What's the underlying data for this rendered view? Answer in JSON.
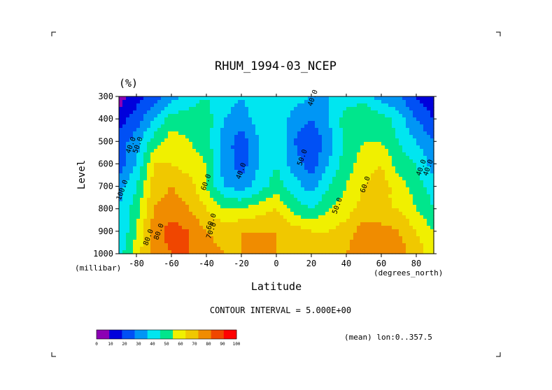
{
  "chart_data": {
    "type": "heatmap",
    "title": "RHUM_1994-03_NCEP",
    "units": "(%)",
    "xlabel": "Latitude",
    "ylabel": "Level",
    "x_unit_label": "(degrees_north)",
    "y_unit_label": "(millibar)",
    "xlim": [
      -90,
      90
    ],
    "ylim": [
      1000,
      300
    ],
    "x_ticks": [
      -80,
      -60,
      -40,
      -20,
      0,
      20,
      40,
      60,
      80
    ],
    "y_ticks": [
      300,
      400,
      500,
      600,
      700,
      800,
      900,
      1000
    ],
    "x_tick_labels": [
      "-80",
      "-60",
      "-40",
      "-20",
      "0",
      "20",
      "40",
      "60",
      "80"
    ],
    "y_tick_labels": [
      "300",
      "400",
      "500",
      "600",
      "700",
      "800",
      "900",
      "1000"
    ],
    "latitudes": [
      -90,
      -80,
      -70,
      -60,
      -50,
      -40,
      -30,
      -20,
      -10,
      0,
      10,
      20,
      30,
      40,
      50,
      60,
      70,
      80,
      90
    ],
    "levels": [
      300,
      400,
      500,
      600,
      700,
      800,
      900,
      1000
    ],
    "values": [
      [
        5,
        15,
        25,
        35,
        45,
        50,
        45,
        40,
        45,
        50,
        45,
        40,
        40,
        45,
        45,
        35,
        30,
        20,
        10
      ],
      [
        15,
        25,
        40,
        55,
        55,
        55,
        40,
        35,
        45,
        50,
        35,
        30,
        40,
        55,
        60,
        55,
        45,
        30,
        20
      ],
      [
        25,
        35,
        55,
        65,
        60,
        55,
        35,
        25,
        40,
        50,
        30,
        20,
        35,
        55,
        60,
        60,
        50,
        40,
        30
      ],
      [
        25,
        40,
        70,
        70,
        65,
        60,
        35,
        25,
        40,
        50,
        35,
        25,
        40,
        55,
        65,
        70,
        55,
        50,
        35
      ],
      [
        35,
        50,
        75,
        80,
        75,
        60,
        40,
        35,
        45,
        55,
        45,
        35,
        50,
        60,
        70,
        75,
        65,
        55,
        45
      ],
      [
        40,
        55,
        80,
        85,
        80,
        70,
        60,
        60,
        65,
        70,
        55,
        50,
        60,
        65,
        75,
        70,
        70,
        60,
        50
      ],
      [
        40,
        60,
        85,
        95,
        90,
        80,
        75,
        80,
        80,
        80,
        75,
        70,
        70,
        75,
        85,
        85,
        80,
        70,
        60
      ],
      [
        45,
        65,
        85,
        90,
        90,
        85,
        80,
        80,
        85,
        80,
        75,
        75,
        80,
        80,
        90,
        90,
        85,
        75,
        65
      ]
    ],
    "contour_interval_text": "CONTOUR INTERVAL = 5.000E+00",
    "footnote": "(mean) lon:0..357.5",
    "contour_labels": [
      {
        "text": "40.0",
        "lat": 22,
        "level": 310
      },
      {
        "text": "40.0",
        "lat": -82,
        "level": 520
      },
      {
        "text": "50.0",
        "lat": -78,
        "level": 520
      },
      {
        "text": "50.0",
        "lat": 16,
        "level": 575
      },
      {
        "text": "40.0",
        "lat": -19,
        "level": 635
      },
      {
        "text": "60.0",
        "lat": -39,
        "level": 685
      },
      {
        "text": "60.0",
        "lat": 52,
        "level": 695
      },
      {
        "text": "50.0",
        "lat": 36,
        "level": 790
      },
      {
        "text": "60.0",
        "lat": -36,
        "level": 860
      },
      {
        "text": "70.0",
        "lat": -36,
        "level": 900
      },
      {
        "text": "80.0",
        "lat": -66,
        "level": 905
      },
      {
        "text": "80.0",
        "lat": -72,
        "level": 930
      },
      {
        "text": "100.0",
        "lat": -87,
        "level": 720
      },
      {
        "text": "40.0",
        "lat": 84,
        "level": 620
      },
      {
        "text": "40.0",
        "lat": 88,
        "level": 620
      }
    ],
    "colorbar": {
      "ticks": [
        "0",
        "10",
        "20",
        "30",
        "40",
        "50",
        "60",
        "70",
        "80",
        "90",
        "100"
      ],
      "colors": [
        "#8c00b4",
        "#0000dc",
        "#0050f5",
        "#0096f5",
        "#00e6f0",
        "#00e68c",
        "#f0f000",
        "#f0c800",
        "#f08c00",
        "#f04600",
        "#ff0000"
      ]
    }
  }
}
